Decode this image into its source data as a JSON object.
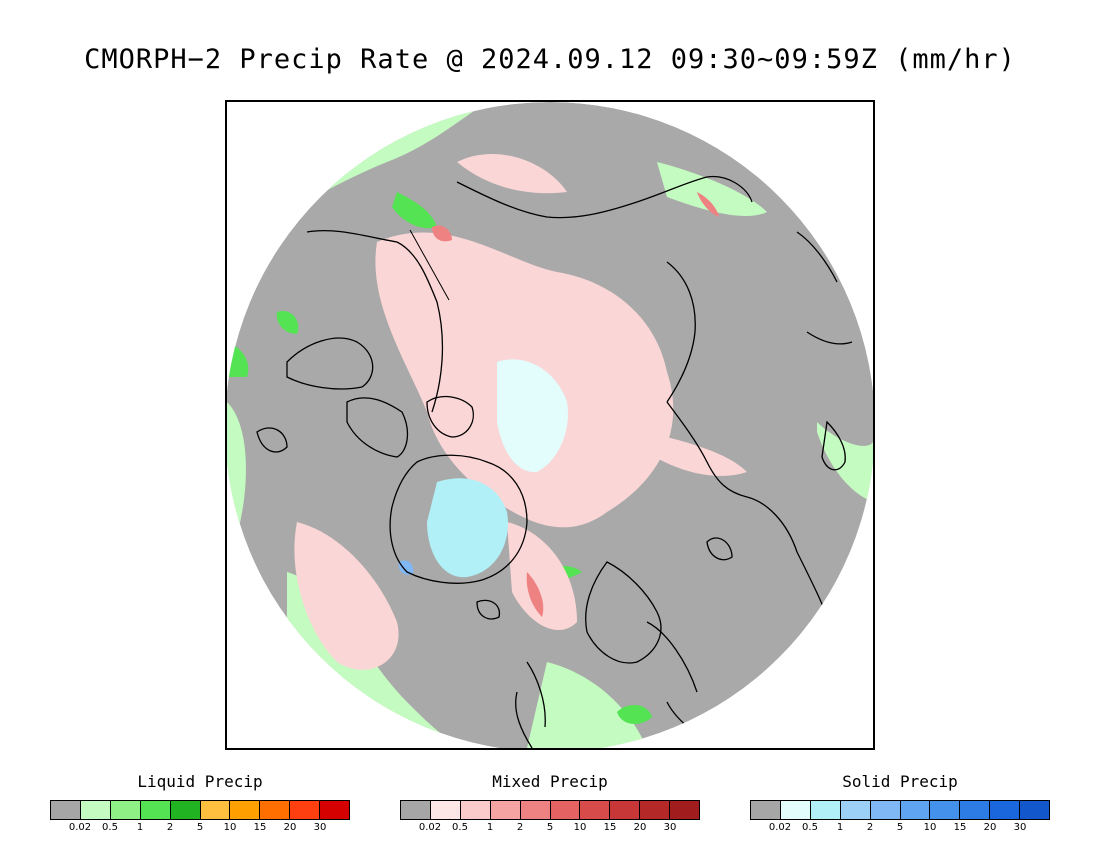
{
  "title": "CMORPH−2 Precip Rate @ 2024.09.12 09:30~09:59Z (mm/hr)",
  "map": {
    "projection_description": "North polar stereographic",
    "background_color": "#a9a9a9"
  },
  "legends": [
    {
      "id": "liquid",
      "title": "Liquid Precip",
      "colors": [
        "#a6a6a6",
        "#c4fbc0",
        "#8ef085",
        "#53e353",
        "#22b322",
        "#ffc040",
        "#ff9f00",
        "#ff6f00",
        "#ff3f10",
        "#d50000"
      ],
      "ticks": [
        "0.02",
        "0.5",
        "1",
        "2",
        "5",
        "10",
        "15",
        "20",
        "30"
      ]
    },
    {
      "id": "mixed",
      "title": "Mixed Precip",
      "colors": [
        "#a6a6a6",
        "#fde6e6",
        "#fbcaca",
        "#f5a3a3",
        "#ee8282",
        "#e46262",
        "#d84b4b",
        "#c83737",
        "#b52828",
        "#a11d1d"
      ],
      "ticks": [
        "0.02",
        "0.5",
        "1",
        "2",
        "5",
        "10",
        "15",
        "20",
        "30"
      ]
    },
    {
      "id": "solid",
      "title": "Solid Precip",
      "colors": [
        "#a6a6a6",
        "#e3fdfd",
        "#b0f0f6",
        "#9cd0f6",
        "#7fb8f4",
        "#5ea4f0",
        "#4391ea",
        "#2d7be4",
        "#1a66dd",
        "#1257cc"
      ],
      "ticks": [
        "0.02",
        "0.5",
        "1",
        "2",
        "5",
        "10",
        "15",
        "20",
        "30"
      ]
    }
  ]
}
